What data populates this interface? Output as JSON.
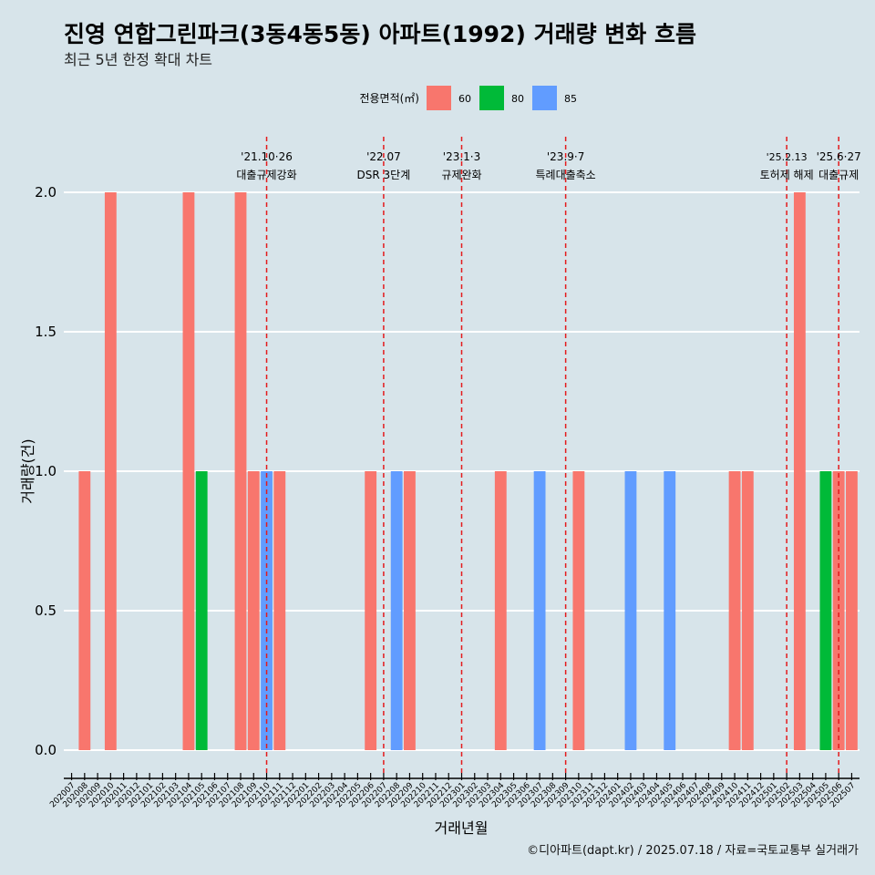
{
  "title": "진영 연합그린파크(3동4동5동) 아파트(1992) 거래량 변화 흐름",
  "subtitle": "최근 5년 한정 확대 차트",
  "caption": "©디아파트(dapt.kr) / 2025.07.18 / 자료=국토교통부 실거래가",
  "chart_data": {
    "type": "bar",
    "xlabel": "거래년월",
    "ylabel": "거래량(건)",
    "ylim": [
      0,
      2.2
    ],
    "yticks": [
      "0.0",
      "0.5",
      "1.0",
      "1.5",
      "2.0"
    ],
    "legend": {
      "title": "전용면적(㎡)",
      "position": "top",
      "entries": [
        {
          "label": "60",
          "color": "#F8766D"
        },
        {
          "label": "80",
          "color": "#00BA38"
        },
        {
          "label": "85",
          "color": "#619CFF"
        }
      ]
    },
    "categories": [
      "202007",
      "202008",
      "202009",
      "202010",
      "202011",
      "202012",
      "202101",
      "202102",
      "202103",
      "202104",
      "202105",
      "202106",
      "202107",
      "202108",
      "202109",
      "202110",
      "202111",
      "202112",
      "202201",
      "202202",
      "202203",
      "202204",
      "202205",
      "202206",
      "202207",
      "202208",
      "202209",
      "202210",
      "202211",
      "202212",
      "202301",
      "202302",
      "202303",
      "202304",
      "202305",
      "202306",
      "202307",
      "202308",
      "202309",
      "202310",
      "202311",
      "202312",
      "202401",
      "202402",
      "202403",
      "202404",
      "202405",
      "202406",
      "202407",
      "202408",
      "202409",
      "202410",
      "202411",
      "202412",
      "202501",
      "202502",
      "202503",
      "202504",
      "202505",
      "202506",
      "202507"
    ],
    "bars": [
      {
        "month": "202008",
        "area": "60",
        "value": 1
      },
      {
        "month": "202010",
        "area": "60",
        "value": 2
      },
      {
        "month": "202104",
        "area": "60",
        "value": 2
      },
      {
        "month": "202105",
        "area": "80",
        "value": 1
      },
      {
        "month": "202108",
        "area": "60",
        "value": 2
      },
      {
        "month": "202109",
        "area": "60",
        "value": 1
      },
      {
        "month": "202110",
        "area": "85",
        "value": 1
      },
      {
        "month": "202111",
        "area": "60",
        "value": 1
      },
      {
        "month": "202206",
        "area": "60",
        "value": 1
      },
      {
        "month": "202208",
        "area": "85",
        "value": 1
      },
      {
        "month": "202209",
        "area": "60",
        "value": 1
      },
      {
        "month": "202304",
        "area": "60",
        "value": 1
      },
      {
        "month": "202307",
        "area": "85",
        "value": 1
      },
      {
        "month": "202310",
        "area": "60",
        "value": 1
      },
      {
        "month": "202402",
        "area": "85",
        "value": 1
      },
      {
        "month": "202405",
        "area": "85",
        "value": 1
      },
      {
        "month": "202410",
        "area": "60",
        "value": 1
      },
      {
        "month": "202411",
        "area": "60",
        "value": 1
      },
      {
        "month": "202503",
        "area": "60",
        "value": 2
      },
      {
        "month": "202505",
        "area": "80",
        "value": 1
      },
      {
        "month": "202506",
        "area": "60",
        "value": 1
      },
      {
        "month": "202507",
        "area": "60",
        "value": 1
      }
    ],
    "events": [
      {
        "month": "202110",
        "date": "'21.10·26",
        "label": "대출규제강화"
      },
      {
        "month": "202207",
        "date": "'22.07",
        "label": "DSR 3단계"
      },
      {
        "month": "202301",
        "date": "'23.1·3",
        "label": "규제완화"
      },
      {
        "month": "202309",
        "date": "'23.9·7",
        "label": "특례대출축소"
      },
      {
        "month": "202502",
        "date": "'25.2.13",
        "label": "토허제 해제"
      },
      {
        "month": "202506",
        "date": "'25.6·27",
        "label": "대출규제"
      }
    ],
    "event_line_color": "#E41A1C"
  }
}
